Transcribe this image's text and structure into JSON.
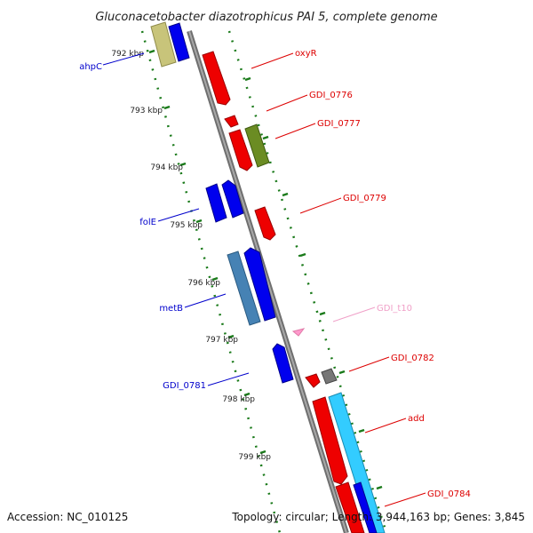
{
  "title": "Gluconacetobacter diazotrophicus PAI 5, complete genome",
  "footer": {
    "accession": "Accession: NC_010125",
    "topology": "Topology: circular; Length: 3,944,163 bp; Genes: 3,845"
  },
  "kbp_labels": [
    "792 kbp",
    "793 kbp",
    "794 kbp",
    "795 kbp",
    "796 kbp",
    "797 kbp",
    "798 kbp",
    "799 kbp"
  ],
  "gene_labels": [
    {
      "text": "ahpC",
      "color": "#0000cc"
    },
    {
      "text": "oxyR",
      "color": "#dd0000"
    },
    {
      "text": "GDI_0776",
      "color": "#dd0000"
    },
    {
      "text": "GDI_0777",
      "color": "#dd0000"
    },
    {
      "text": "GDI_0779",
      "color": "#dd0000"
    },
    {
      "text": "folE",
      "color": "#0000cc"
    },
    {
      "text": "metB",
      "color": "#0000cc"
    },
    {
      "text": "GDI_t10",
      "color": "#f0a0c8"
    },
    {
      "text": "GDI_0782",
      "color": "#dd0000"
    },
    {
      "text": "GDI_0781",
      "color": "#0000cc"
    },
    {
      "text": "add",
      "color": "#dd0000"
    },
    {
      "text": "GDI_0784",
      "color": "#dd0000"
    }
  ],
  "colors": {
    "backbone": "#8a8a8a",
    "forward_gene": "#ee0000",
    "reverse_gene": "#0000ee",
    "tick": "#1a7a1a",
    "olive_gene": "#6b8c23",
    "khaki_gene": "#c8c47a",
    "steelblue_gene": "#4682b4",
    "cyan_gene": "#33ccff",
    "grey_gene": "#777777",
    "trna": "#ff99cc"
  }
}
